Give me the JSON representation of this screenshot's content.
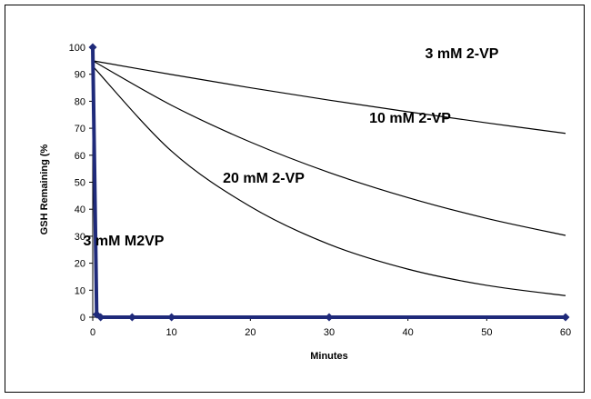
{
  "chart_data": {
    "type": "line",
    "xlabel": "Minutes",
    "ylabel": "GSH Remaining (%",
    "xlim": [
      0,
      60
    ],
    "ylim": [
      0,
      100
    ],
    "x_ticks": [
      "0",
      "10",
      "20",
      "30",
      "40",
      "50",
      "60"
    ],
    "y_ticks": [
      "0",
      "10",
      "20",
      "30",
      "40",
      "50",
      "60",
      "70",
      "80",
      "90",
      "100"
    ],
    "grid": false,
    "colors": {
      "curve": "#000000",
      "marker_series": "#1f2a7a"
    },
    "series": [
      {
        "name": "3 mM 2-VP",
        "x": [
          0,
          10,
          20,
          30,
          40,
          50,
          60
        ],
        "y": [
          95,
          89.9,
          85.0,
          80.4,
          76.1,
          72.0,
          68.1
        ]
      },
      {
        "name": "10 mM 2-VP",
        "x": [
          0,
          10,
          20,
          30,
          40,
          50,
          60
        ],
        "y": [
          95,
          78.5,
          64.9,
          53.6,
          44.3,
          36.6,
          30.3
        ]
      },
      {
        "name": "20 mM 2-VP",
        "x": [
          0,
          10,
          20,
          30,
          40,
          50,
          60
        ],
        "y": [
          93,
          61.5,
          41.0,
          27.0,
          17.8,
          11.8,
          8.0
        ]
      },
      {
        "name": "3 mM M2VP",
        "x": [
          0,
          0.5,
          1,
          5,
          10,
          30,
          60
        ],
        "y": [
          100,
          1,
          0,
          0,
          0,
          0,
          0
        ]
      }
    ]
  }
}
